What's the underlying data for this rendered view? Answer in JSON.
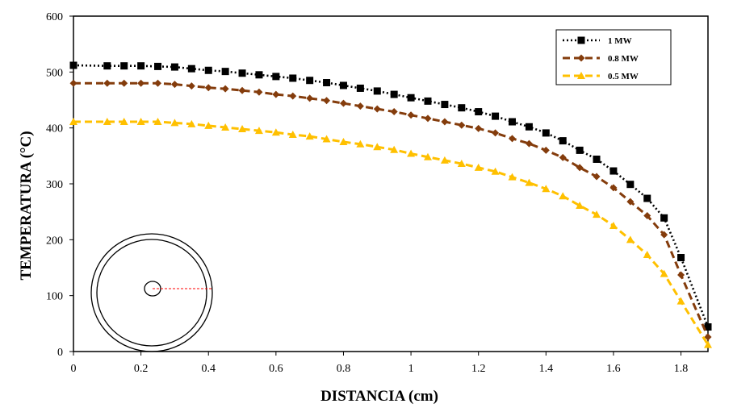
{
  "chart_data": {
    "type": "line",
    "title": "",
    "xlabel": "DISTANCIA (cm)",
    "ylabel": "TEMPERATURA (°C)",
    "xlim": [
      0,
      1.88
    ],
    "ylim": [
      0,
      600
    ],
    "xticks": [
      0,
      0.2,
      0.4,
      0.6,
      0.8,
      1,
      1.2,
      1.4,
      1.6,
      1.8
    ],
    "xtick_labels": [
      "0",
      "0.2",
      "0.4",
      "0.6",
      "0.8",
      "1",
      "1.2",
      "1.4",
      "1.6",
      "1.8"
    ],
    "yticks": [
      0,
      100,
      200,
      300,
      400,
      500,
      600
    ],
    "ytick_labels": [
      "0",
      "100",
      "200",
      "300",
      "400",
      "500",
      "600"
    ],
    "grid": false,
    "legend_position": "top-right",
    "x": [
      0,
      0.1,
      0.15,
      0.2,
      0.25,
      0.3,
      0.35,
      0.4,
      0.45,
      0.5,
      0.55,
      0.6,
      0.65,
      0.7,
      0.75,
      0.8,
      0.85,
      0.9,
      0.95,
      1.0,
      1.05,
      1.1,
      1.15,
      1.2,
      1.25,
      1.3,
      1.35,
      1.4,
      1.45,
      1.5,
      1.55,
      1.6,
      1.65,
      1.7,
      1.75,
      1.8,
      1.88
    ],
    "series": [
      {
        "name": "1 MW",
        "color": "#000000",
        "marker": "square",
        "line_style": "dotted",
        "values": [
          512,
          511,
          511,
          511,
          510,
          509,
          506,
          503,
          501,
          498,
          495,
          492,
          489,
          485,
          481,
          476,
          471,
          466,
          460,
          454,
          448,
          442,
          436,
          429,
          421,
          411,
          402,
          391,
          377,
          360,
          344,
          323,
          299,
          274,
          239,
          168,
          44
        ]
      },
      {
        "name": "0.8 MW",
        "color": "#843c0c",
        "marker": "diamond",
        "line_style": "dashed",
        "values": [
          480,
          480,
          480,
          480,
          480,
          478,
          475,
          472,
          470,
          467,
          464,
          460,
          457,
          453,
          449,
          444,
          439,
          434,
          429,
          423,
          417,
          411,
          405,
          399,
          391,
          381,
          372,
          360,
          347,
          329,
          313,
          293,
          268,
          243,
          209,
          137,
          26
        ]
      },
      {
        "name": "0.5 MW",
        "color": "#ffc000",
        "marker": "triangle",
        "line_style": "dashed",
        "values": [
          411,
          411,
          411,
          411,
          411,
          409,
          407,
          404,
          401,
          398,
          395,
          392,
          388,
          385,
          380,
          375,
          371,
          366,
          361,
          354,
          348,
          342,
          336,
          329,
          322,
          312,
          302,
          291,
          278,
          261,
          245,
          225,
          200,
          173,
          139,
          90,
          12
        ]
      }
    ],
    "inset": {
      "description_icon": "pipe-cross-section",
      "line_color": "#ff0000"
    }
  }
}
